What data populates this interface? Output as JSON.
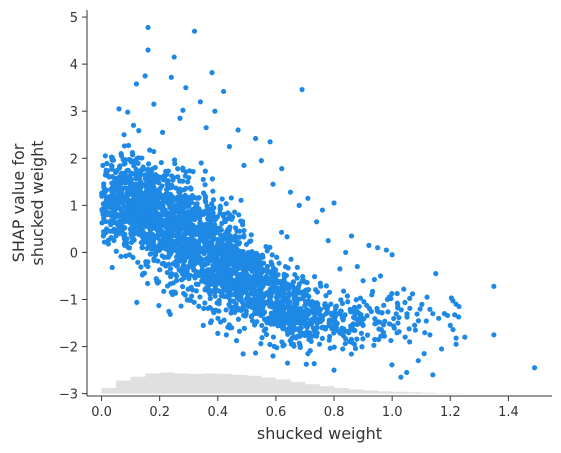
{
  "chart_data": {
    "type": "scatter",
    "xlabel": "shucked weight",
    "ylabel": [
      "SHAP value for",
      "shucked weight"
    ],
    "xlim": [
      -0.05,
      1.55
    ],
    "ylim": [
      -3.05,
      5.15
    ],
    "xticks": [
      0.0,
      0.2,
      0.4,
      0.6,
      0.8,
      1.0,
      1.2,
      1.4
    ],
    "xtick_labels": [
      "0.0",
      "0.2",
      "0.4",
      "0.6",
      "0.8",
      "1.0",
      "1.2",
      "1.4"
    ],
    "yticks": [
      -3,
      -2,
      -1,
      0,
      1,
      2,
      3,
      4,
      5
    ],
    "ytick_labels": [
      "−3",
      "−2",
      "−1",
      "0",
      "1",
      "2",
      "3",
      "4",
      "5"
    ],
    "grid": false,
    "point_color": "#1e88e5",
    "histogram_color": "#e0e0e0",
    "histogram": {
      "bin_edges": [
        0.0,
        0.05,
        0.1,
        0.15,
        0.2,
        0.25,
        0.3,
        0.35,
        0.4,
        0.45,
        0.5,
        0.55,
        0.6,
        0.65,
        0.7,
        0.75,
        0.8,
        0.85,
        0.9,
        0.95,
        1.0,
        1.05,
        1.1,
        1.15,
        1.2,
        1.25
      ],
      "heights": [
        -2.88,
        -2.72,
        -2.64,
        -2.57,
        -2.55,
        -2.57,
        -2.58,
        -2.57,
        -2.58,
        -2.6,
        -2.62,
        -2.66,
        -2.7,
        -2.75,
        -2.8,
        -2.84,
        -2.88,
        -2.91,
        -2.93,
        -2.95,
        -2.96,
        -2.97,
        -2.98,
        -2.99,
        -2.99
      ],
      "baseline": -3.0
    },
    "series": [
      {
        "points": [
          [
            0.16,
            4.78
          ],
          [
            0.32,
            4.7
          ],
          [
            0.16,
            4.3
          ],
          [
            0.25,
            4.15
          ],
          [
            0.38,
            3.82
          ],
          [
            0.15,
            3.75
          ],
          [
            0.24,
            3.72
          ],
          [
            0.12,
            3.58
          ],
          [
            0.29,
            3.5
          ],
          [
            0.42,
            3.42
          ],
          [
            0.69,
            3.46
          ],
          [
            0.06,
            3.05
          ],
          [
            0.18,
            3.15
          ],
          [
            0.34,
            3.2
          ],
          [
            0.09,
            2.98
          ],
          [
            0.28,
            3.02
          ],
          [
            0.39,
            3.0
          ],
          [
            0.11,
            2.7
          ],
          [
            0.27,
            2.85
          ],
          [
            0.47,
            2.6
          ],
          [
            0.53,
            2.42
          ],
          [
            0.36,
            2.65
          ],
          [
            0.58,
            2.35
          ],
          [
            0.44,
            2.25
          ],
          [
            0.21,
            2.55
          ],
          [
            0.62,
            1.78
          ],
          [
            0.55,
            1.95
          ],
          [
            0.49,
            1.85
          ],
          [
            0.71,
            1.15
          ],
          [
            0.76,
            0.9
          ],
          [
            0.8,
            1.05
          ],
          [
            0.65,
            1.28
          ],
          [
            0.68,
            1.0
          ],
          [
            0.74,
            0.65
          ],
          [
            0.59,
            1.45
          ],
          [
            0.86,
            0.35
          ],
          [
            0.92,
            0.15
          ],
          [
            0.95,
            0.1
          ],
          [
            0.98,
            0.05
          ],
          [
            1.0,
            -0.05
          ],
          [
            0.84,
            0.0
          ],
          [
            0.78,
            0.25
          ],
          [
            0.82,
            -0.35
          ],
          [
            0.88,
            -0.3
          ],
          [
            0.9,
            -0.6
          ],
          [
            0.96,
            -0.5
          ],
          [
            0.93,
            -0.9
          ],
          [
            0.99,
            -0.95
          ],
          [
            1.04,
            -0.78
          ],
          [
            1.07,
            -0.88
          ],
          [
            1.12,
            -0.95
          ],
          [
            1.15,
            -0.45
          ],
          [
            1.22,
            -1.1
          ],
          [
            1.23,
            -1.15
          ],
          [
            1.35,
            -0.72
          ],
          [
            1.18,
            -1.3
          ],
          [
            1.16,
            -1.4
          ],
          [
            1.2,
            -1.55
          ],
          [
            1.25,
            -1.8
          ],
          [
            1.35,
            -1.75
          ],
          [
            1.49,
            -2.45
          ],
          [
            1.11,
            -2.15
          ],
          [
            1.09,
            -2.3
          ],
          [
            1.05,
            -2.55
          ],
          [
            1.03,
            -2.65
          ],
          [
            1.14,
            -2.6
          ],
          [
            1.22,
            -1.82
          ],
          [
            1.22,
            -1.95
          ],
          [
            1.08,
            -1.65
          ],
          [
            1.13,
            -1.75
          ],
          [
            1.02,
            -1.5
          ],
          [
            1.06,
            -1.9
          ],
          [
            1.17,
            -2.05
          ],
          [
            0.94,
            -1.85
          ],
          [
            0.97,
            -1.7
          ],
          [
            0.9,
            -1.55
          ],
          [
            0.87,
            -1.95
          ],
          [
            0.83,
            -2.05
          ],
          [
            0.8,
            -2.5
          ],
          [
            0.75,
            -1.95
          ],
          [
            0.71,
            -2.15
          ],
          [
            0.66,
            -1.95
          ],
          [
            0.59,
            -2.2
          ],
          [
            0.64,
            -2.35
          ],
          [
            0.4,
            -1.72
          ],
          [
            0.35,
            -1.55
          ],
          [
            0.24,
            -0.85
          ],
          [
            0.42,
            -0.55
          ],
          [
            0.01,
            0.22
          ],
          [
            0.03,
            0.45
          ],
          [
            0.07,
            0.5
          ],
          [
            0.05,
            0.35
          ],
          [
            0.08,
            0.65
          ],
          [
            0.28,
            1.75
          ],
          [
            0.35,
            1.55
          ]
        ],
        "clusters": [
          {
            "cx": 0.07,
            "cy": 1.15,
            "sx": 0.045,
            "sy": 0.42,
            "n": 320
          },
          {
            "cx": 0.15,
            "cy": 0.95,
            "sx": 0.05,
            "sy": 0.5,
            "n": 340
          },
          {
            "cx": 0.22,
            "cy": 0.6,
            "sx": 0.05,
            "sy": 0.55,
            "n": 340
          },
          {
            "cx": 0.3,
            "cy": 0.3,
            "sx": 0.05,
            "sy": 0.55,
            "n": 330
          },
          {
            "cx": 0.38,
            "cy": 0.0,
            "sx": 0.05,
            "sy": 0.55,
            "n": 320
          },
          {
            "cx": 0.46,
            "cy": -0.4,
            "sx": 0.05,
            "sy": 0.5,
            "n": 290
          },
          {
            "cx": 0.54,
            "cy": -0.8,
            "sx": 0.05,
            "sy": 0.45,
            "n": 250
          },
          {
            "cx": 0.62,
            "cy": -1.1,
            "sx": 0.05,
            "sy": 0.4,
            "n": 210
          },
          {
            "cx": 0.7,
            "cy": -1.3,
            "sx": 0.05,
            "sy": 0.35,
            "n": 150
          },
          {
            "cx": 0.8,
            "cy": -1.45,
            "sx": 0.06,
            "sy": 0.3,
            "n": 100
          },
          {
            "cx": 0.95,
            "cy": -1.45,
            "sx": 0.08,
            "sy": 0.3,
            "n": 60
          },
          {
            "cx": 1.1,
            "cy": -1.35,
            "sx": 0.08,
            "sy": 0.35,
            "n": 25
          }
        ],
        "seed": 12345
      }
    ]
  }
}
